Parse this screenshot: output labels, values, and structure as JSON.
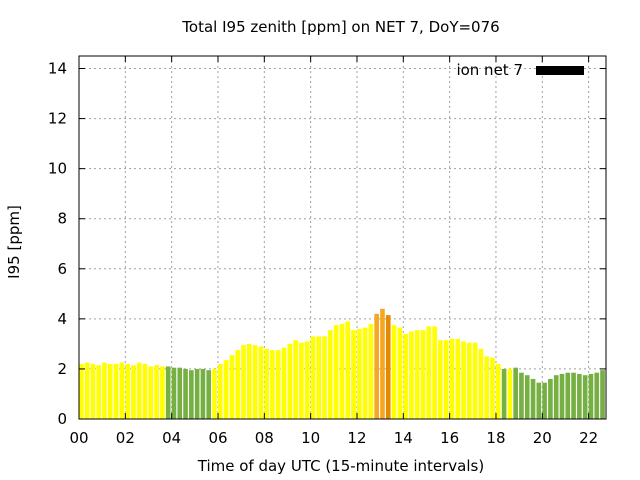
{
  "chart_data": {
    "type": "bar",
    "title": "Total I95 zenith [ppm] on NET 7, DoY=076",
    "xlabel": "Time of day UTC (15-minute intervals)",
    "ylabel": "I95 [ppm]",
    "xlim": [
      0,
      22.75
    ],
    "ylim": [
      0,
      14.5
    ],
    "x_ticks": [
      0,
      2,
      4,
      6,
      8,
      10,
      12,
      14,
      16,
      18,
      20,
      22
    ],
    "x_tick_labels": [
      "00",
      "02",
      "04",
      "06",
      "08",
      "10",
      "12",
      "14",
      "16",
      "18",
      "20",
      "22"
    ],
    "y_ticks": [
      0,
      2,
      4,
      6,
      8,
      10,
      12,
      14
    ],
    "y_tick_labels": [
      "0",
      "2",
      "4",
      "6",
      "8",
      "10",
      "12",
      "14"
    ],
    "grid": true,
    "legend": {
      "position": "top-right",
      "entries": [
        {
          "label": "ion net 7",
          "color": "#000000"
        }
      ]
    },
    "interval_hours": 0.25,
    "colors": {
      "yellow": "#ffff00",
      "green": "#76b043",
      "orange": "#f5a623",
      "dark_orange": "#e88a00"
    },
    "x": [
      0.0,
      0.25,
      0.5,
      0.75,
      1.0,
      1.25,
      1.5,
      1.75,
      2.0,
      2.25,
      2.5,
      2.75,
      3.0,
      3.25,
      3.5,
      3.75,
      4.0,
      4.25,
      4.5,
      4.75,
      5.0,
      5.25,
      5.5,
      5.75,
      6.0,
      6.25,
      6.5,
      6.75,
      7.0,
      7.25,
      7.5,
      7.75,
      8.0,
      8.25,
      8.5,
      8.75,
      9.0,
      9.25,
      9.5,
      9.75,
      10.0,
      10.25,
      10.5,
      10.75,
      11.0,
      11.25,
      11.5,
      11.75,
      12.0,
      12.25,
      12.5,
      12.75,
      13.0,
      13.25,
      13.5,
      13.75,
      14.0,
      14.25,
      14.5,
      14.75,
      15.0,
      15.25,
      15.5,
      15.75,
      16.0,
      16.25,
      16.5,
      16.75,
      17.0,
      17.25,
      17.5,
      17.75,
      18.0,
      18.25,
      18.5,
      18.75,
      19.0,
      19.25,
      19.5,
      19.75,
      20.0,
      20.25,
      20.5,
      20.75,
      21.0,
      21.25,
      21.5,
      21.75,
      22.0,
      22.25,
      22.5
    ],
    "values": [
      2.2,
      2.25,
      2.2,
      2.15,
      2.25,
      2.2,
      2.2,
      2.25,
      2.2,
      2.15,
      2.25,
      2.2,
      2.1,
      2.15,
      2.1,
      2.1,
      2.05,
      2.05,
      2.0,
      1.95,
      2.0,
      2.0,
      1.95,
      2.0,
      2.2,
      2.35,
      2.55,
      2.75,
      2.95,
      3.0,
      2.95,
      2.9,
      2.8,
      2.75,
      2.75,
      2.85,
      3.0,
      3.15,
      3.05,
      3.1,
      3.3,
      3.3,
      3.3,
      3.55,
      3.75,
      3.8,
      3.9,
      3.55,
      3.6,
      3.65,
      3.8,
      4.2,
      4.4,
      4.15,
      3.75,
      3.65,
      3.4,
      3.5,
      3.55,
      3.55,
      3.7,
      3.7,
      3.15,
      3.15,
      3.2,
      3.2,
      3.1,
      3.05,
      3.05,
      2.8,
      2.5,
      2.45,
      2.2,
      2.0,
      2.0,
      2.05,
      1.85,
      1.75,
      1.6,
      1.45,
      1.45,
      1.6,
      1.75,
      1.8,
      1.85,
      1.85,
      1.8,
      1.75,
      1.8,
      1.85,
      1.95
    ],
    "bar_colors": [
      "yellow",
      "yellow",
      "yellow",
      "yellow",
      "yellow",
      "yellow",
      "yellow",
      "yellow",
      "yellow",
      "yellow",
      "yellow",
      "yellow",
      "yellow",
      "yellow",
      "yellow",
      "green",
      "green",
      "green",
      "green",
      "green",
      "green",
      "green",
      "green",
      "yellow",
      "yellow",
      "yellow",
      "yellow",
      "yellow",
      "yellow",
      "yellow",
      "yellow",
      "yellow",
      "yellow",
      "yellow",
      "yellow",
      "yellow",
      "yellow",
      "yellow",
      "yellow",
      "yellow",
      "yellow",
      "yellow",
      "yellow",
      "yellow",
      "yellow",
      "yellow",
      "yellow",
      "yellow",
      "yellow",
      "yellow",
      "yellow",
      "orange",
      "orange",
      "dark_orange",
      "yellow",
      "yellow",
      "yellow",
      "yellow",
      "yellow",
      "yellow",
      "yellow",
      "yellow",
      "yellow",
      "yellow",
      "yellow",
      "yellow",
      "yellow",
      "yellow",
      "yellow",
      "yellow",
      "yellow",
      "yellow",
      "yellow",
      "green",
      "yellow",
      "green",
      "green",
      "green",
      "green",
      "green",
      "green",
      "green",
      "green",
      "green",
      "green",
      "green",
      "green",
      "green",
      "green",
      "green",
      "green"
    ]
  }
}
